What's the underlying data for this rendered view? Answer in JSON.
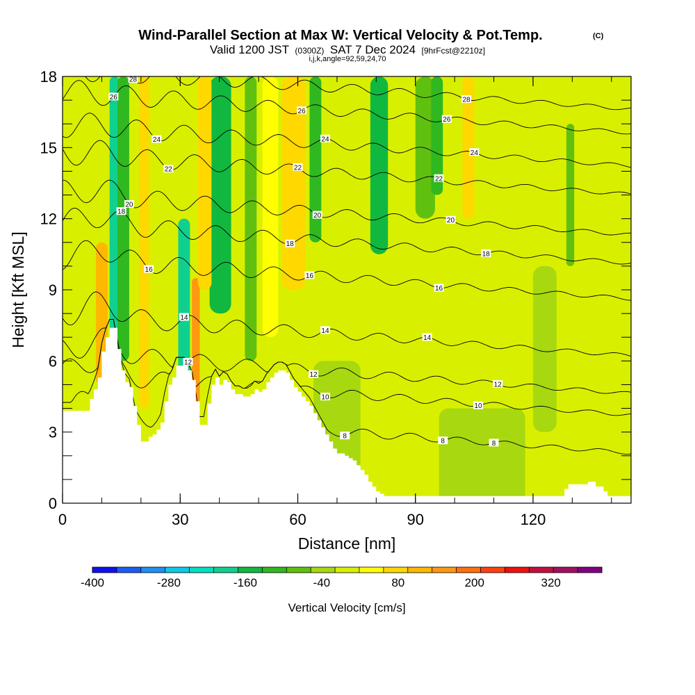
{
  "chart_data": {
    "type": "heatmap",
    "title": "Wind-Parallel Section at Max W: Vertical Velocity & Pot.Temp.",
    "title_mark": "(C)",
    "subtitle": {
      "valid": "Valid 1200 JST",
      "zulu": "(0300Z)",
      "date": "SAT 7 Dec 2024",
      "fcst": "[9hrFcst@2210z]"
    },
    "params": "i,j,k,angle=92,59,24,70",
    "xlabel": "Distance [nm]",
    "ylabel": "Height [Kft MSL]",
    "xlim": [
      0,
      145
    ],
    "ylim": [
      0,
      18
    ],
    "x_ticks": [
      0,
      30,
      60,
      90,
      120
    ],
    "y_ticks": [
      0,
      3,
      6,
      9,
      12,
      15,
      18
    ],
    "colorbar": {
      "label": "Vertical Velocity [cm/s]",
      "min": -400,
      "max": 400,
      "step": 40,
      "tick_labels": [
        -400,
        -280,
        -160,
        -40,
        80,
        200,
        320
      ],
      "colors": [
        "#1010f0",
        "#1e5cf0",
        "#1e90f0",
        "#10c8e8",
        "#00e0c0",
        "#10d090",
        "#10b840",
        "#30b820",
        "#60c010",
        "#a8d810",
        "#d8f000",
        "#ffff00",
        "#ffd800",
        "#ffb800",
        "#ff9810",
        "#ff7010",
        "#ff4010",
        "#ee1010",
        "#c01040",
        "#a01060",
        "#800080"
      ]
    },
    "terrain": [
      [
        0,
        3.9
      ],
      [
        6,
        3.9
      ],
      [
        7,
        4.4
      ],
      [
        8,
        4.8
      ],
      [
        9,
        5.3
      ],
      [
        10,
        6.4
      ],
      [
        11,
        7.0
      ],
      [
        12,
        7.4
      ],
      [
        13,
        7.4
      ],
      [
        14,
        6.5
      ],
      [
        15,
        5.6
      ],
      [
        16,
        5.1
      ],
      [
        17,
        4.9
      ],
      [
        18,
        4.1
      ],
      [
        19,
        3.3
      ],
      [
        20,
        2.6
      ],
      [
        21,
        2.6
      ],
      [
        22,
        2.8
      ],
      [
        23,
        2.9
      ],
      [
        24,
        3.1
      ],
      [
        25,
        3.4
      ],
      [
        26,
        4.3
      ],
      [
        27,
        5.0
      ],
      [
        28,
        5.3
      ],
      [
        29,
        5.8
      ],
      [
        30,
        5.8
      ],
      [
        31,
        5.8
      ],
      [
        32,
        5.6
      ],
      [
        33,
        5.2
      ],
      [
        34,
        4.3
      ],
      [
        35,
        3.3
      ],
      [
        36,
        3.3
      ],
      [
        37,
        4.2
      ],
      [
        38,
        5.0
      ],
      [
        39,
        5.3
      ],
      [
        40,
        5.0
      ],
      [
        41,
        5.2
      ],
      [
        42,
        5.1
      ],
      [
        43,
        4.8
      ],
      [
        44,
        4.6
      ],
      [
        45,
        4.6
      ],
      [
        46,
        4.5
      ],
      [
        47,
        4.5
      ],
      [
        48,
        4.6
      ],
      [
        49,
        4.8
      ],
      [
        50,
        4.7
      ],
      [
        51,
        4.8
      ],
      [
        52,
        5.1
      ],
      [
        53,
        5.3
      ],
      [
        54,
        5.5
      ],
      [
        55,
        5.6
      ],
      [
        56,
        5.6
      ],
      [
        57,
        5.5
      ],
      [
        58,
        5.2
      ],
      [
        59,
        4.9
      ],
      [
        60,
        4.7
      ],
      [
        61,
        4.5
      ],
      [
        62,
        4.3
      ],
      [
        63,
        4.1
      ],
      [
        64,
        3.8
      ],
      [
        65,
        3.5
      ],
      [
        66,
        3.2
      ],
      [
        67,
        2.9
      ],
      [
        68,
        2.6
      ],
      [
        69,
        2.3
      ],
      [
        70,
        2.1
      ],
      [
        71,
        2.1
      ],
      [
        72,
        2.0
      ],
      [
        73,
        1.9
      ],
      [
        74,
        1.8
      ],
      [
        75,
        1.6
      ],
      [
        76,
        1.4
      ],
      [
        77,
        1.2
      ],
      [
        78,
        0.9
      ],
      [
        79,
        0.7
      ],
      [
        80,
        0.5
      ],
      [
        81,
        0.4
      ],
      [
        82,
        0.3
      ],
      [
        100,
        0.3
      ],
      [
        104,
        0.3
      ],
      [
        127,
        0.3
      ],
      [
        128,
        0.6
      ],
      [
        129,
        0.8
      ],
      [
        134,
        0.9
      ],
      [
        136,
        0.7
      ],
      [
        138,
        0.5
      ],
      [
        139,
        0.3
      ],
      [
        145,
        0.3
      ]
    ],
    "w_regions": [
      {
        "x": [
          12.0,
          14.5
        ],
        "y": [
          7,
          18
        ],
        "w": -200
      },
      {
        "x": [
          14.0,
          17.0
        ],
        "y": [
          6,
          18
        ],
        "w": -120
      },
      {
        "x": [
          8.5,
          11.5
        ],
        "y": [
          5,
          11
        ],
        "w": 120
      },
      {
        "x": [
          19.5,
          22.0
        ],
        "y": [
          4,
          18
        ],
        "w": 80
      },
      {
        "x": [
          29.5,
          32.5
        ],
        "y": [
          5,
          12
        ],
        "w": -180
      },
      {
        "x": [
          33.0,
          35.0
        ],
        "y": [
          3.5,
          9.5
        ],
        "w": 160
      },
      {
        "x": [
          37.5,
          43.0
        ],
        "y": [
          8,
          18
        ],
        "w": -160
      },
      {
        "x": [
          34.5,
          38.0
        ],
        "y": [
          9,
          18
        ],
        "w": 80
      },
      {
        "x": [
          46.5,
          49.5
        ],
        "y": [
          6,
          18
        ],
        "w": -80
      },
      {
        "x": [
          51.0,
          55.0
        ],
        "y": [
          7,
          18
        ],
        "w": 60
      },
      {
        "x": [
          56.0,
          62.0
        ],
        "y": [
          9,
          18
        ],
        "w": 110
      },
      {
        "x": [
          63.0,
          66.0
        ],
        "y": [
          11,
          18
        ],
        "w": -100
      },
      {
        "x": [
          70.0,
          72.0
        ],
        "y": [
          2.5,
          6
        ],
        "w": 90
      },
      {
        "x": [
          78.5,
          83.0
        ],
        "y": [
          10.5,
          18
        ],
        "w": -130
      },
      {
        "x": [
          90.0,
          95.0
        ],
        "y": [
          12,
          18
        ],
        "w": -60
      },
      {
        "x": [
          94.0,
          97.0
        ],
        "y": [
          13,
          18
        ],
        "w": -110
      },
      {
        "x": [
          102.0,
          105.0
        ],
        "y": [
          12,
          18
        ],
        "w": 80
      },
      {
        "x": [
          128.5,
          130.5
        ],
        "y": [
          10,
          16
        ],
        "w": -80
      },
      {
        "x": [
          120.0,
          126.0
        ],
        "y": [
          3,
          10
        ],
        "w": -40
      },
      {
        "x": [
          64.0,
          76.0
        ],
        "y": [
          0,
          6
        ],
        "w": -40
      },
      {
        "x": [
          96.0,
          118.0
        ],
        "y": [
          0,
          4
        ],
        "w": -40
      }
    ],
    "theta_contours": [
      {
        "value": 8,
        "base": 3.0,
        "label_at": [
          72,
          97,
          110
        ]
      },
      {
        "value": 10,
        "base": 4.6,
        "label_at": [
          67,
          106
        ]
      },
      {
        "value": 12,
        "base": 5.5,
        "label_at": [
          32,
          64,
          111
        ]
      },
      {
        "value": 14,
        "base": 7.1,
        "label_at": [
          31,
          67,
          93
        ]
      },
      {
        "value": 16,
        "base": 9.5,
        "label_at": [
          22,
          63,
          96
        ]
      },
      {
        "value": 18,
        "base": 11.0,
        "label_at": [
          15,
          58,
          108
        ]
      },
      {
        "value": 20,
        "base": 12.2,
        "label_at": [
          17,
          65,
          99
        ]
      },
      {
        "value": 22,
        "base": 13.9,
        "label_at": [
          27,
          60,
          96
        ]
      },
      {
        "value": 24,
        "base": 15.1,
        "label_at": [
          24,
          67,
          105
        ]
      },
      {
        "value": 26,
        "base": 16.5,
        "label_at": [
          13,
          61,
          98
        ]
      },
      {
        "value": 28,
        "base": 17.5,
        "label_at": [
          18,
          103
        ]
      }
    ]
  }
}
